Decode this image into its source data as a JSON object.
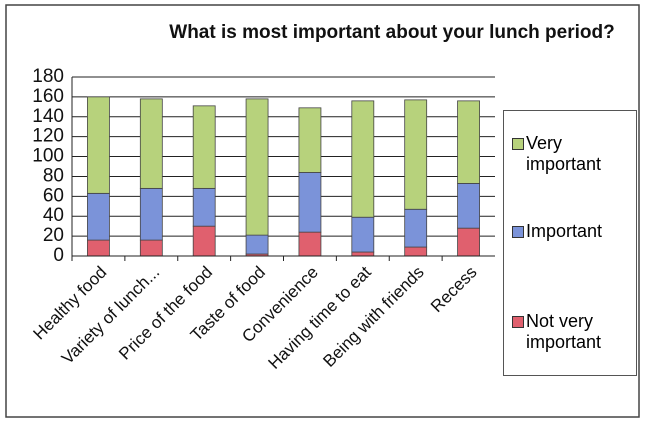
{
  "chart_data": {
    "type": "bar",
    "stacked": true,
    "title": "What is most important about your lunch period?",
    "categories": [
      "Healthy food",
      "Variety of lunch...",
      "Price of the food",
      "Taste of food",
      "Convenience",
      "Having time to eat",
      "Being with friends",
      "Recess"
    ],
    "series": [
      {
        "name": "Not very important",
        "color": "#e0606e",
        "values": [
          16,
          16,
          30,
          2,
          24,
          4,
          9,
          28
        ]
      },
      {
        "name": "Important",
        "color": "#7b93d9",
        "values": [
          47,
          52,
          38,
          19,
          60,
          35,
          38,
          45
        ]
      },
      {
        "name": "Very important",
        "color": "#b7d27c",
        "values": [
          97,
          90,
          83,
          137,
          65,
          117,
          110,
          83
        ]
      }
    ],
    "ylim": [
      0,
      180
    ],
    "yticks": [
      0,
      20,
      40,
      60,
      80,
      100,
      120,
      140,
      160,
      180
    ],
    "grid": true,
    "legend": "right"
  }
}
